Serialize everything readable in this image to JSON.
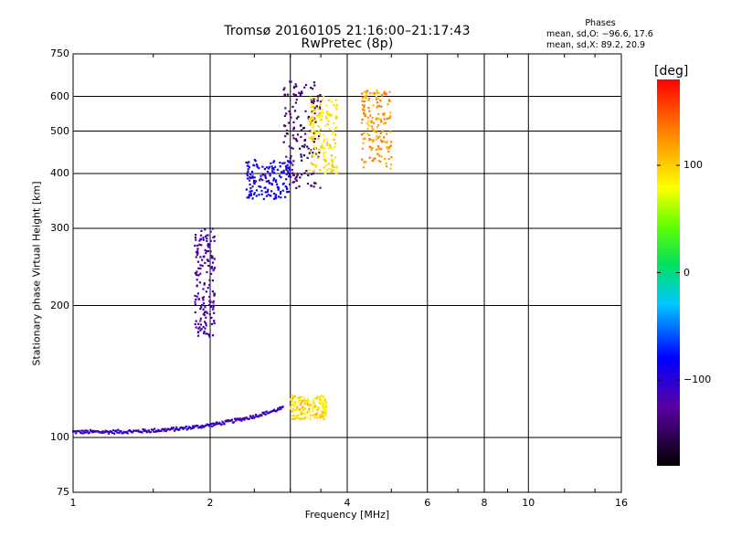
{
  "header": {
    "title_line1": "Tromsø 20160105 21:16:00–21:17:43",
    "title_line2": "RwPretec (8p)",
    "stats_title": "Phases",
    "stats_o": "mean, sd,O: −96.6, 17.6",
    "stats_x": "mean, sd,X:  89.2, 20.9"
  },
  "colorbar": {
    "unit_label": "[deg]",
    "tick_labels": [
      "100",
      "0",
      "−100"
    ],
    "tick_values": [
      100,
      0,
      -100
    ],
    "range": [
      -180,
      180
    ]
  },
  "chart_data": {
    "type": "scatter",
    "title": "Tromsø 20160105 21:16:00–21:17:43",
    "subtitle": "RwPretec (8p)",
    "xlabel": "Frequency [MHz]",
    "ylabel": "Stationary phase Virtual Height [km]",
    "xscale": "log",
    "yscale": "log",
    "xlim": [
      1,
      16
    ],
    "ylim": [
      75,
      750
    ],
    "x_ticks": [
      1,
      2,
      4,
      6,
      8,
      10,
      16
    ],
    "y_ticks": [
      75,
      100,
      200,
      300,
      400,
      500,
      600,
      750
    ],
    "x_grid": [
      2,
      3,
      4,
      6,
      8,
      10
    ],
    "y_grid": [
      100,
      200,
      300,
      400,
      500,
      600
    ],
    "grid": true,
    "color_axis": "phase [deg]",
    "color_range": [
      -180,
      180
    ],
    "traces": [
      {
        "x_range": [
          1.0,
          2.9
        ],
        "y_range": [
          100,
          120
        ],
        "phase": -110
      },
      {
        "x_range": [
          1.85,
          2.05
        ],
        "y_range": [
          170,
          300
        ],
        "phase": -120
      },
      {
        "x_range": [
          2.4,
          3.0
        ],
        "y_range": [
          350,
          430
        ],
        "phase": -90
      },
      {
        "x_range": [
          2.9,
          3.5
        ],
        "y_range": [
          370,
          650
        ],
        "phase": -140
      },
      {
        "x_range": [
          3.3,
          3.8
        ],
        "y_range": [
          400,
          600
        ],
        "phase": 90
      },
      {
        "x_range": [
          4.3,
          5.0
        ],
        "y_range": [
          410,
          620
        ],
        "phase": 120
      },
      {
        "x_range": [
          3.0,
          3.6
        ],
        "y_range": [
          110,
          125
        ],
        "phase": 95
      }
    ]
  }
}
